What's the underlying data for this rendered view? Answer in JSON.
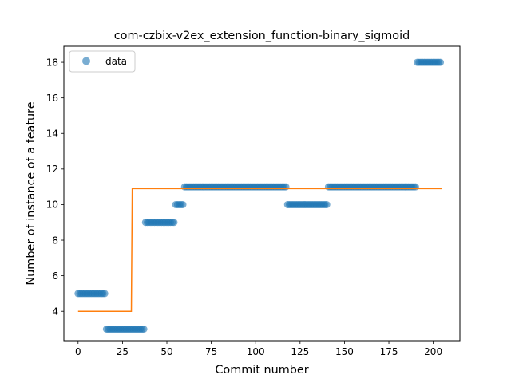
{
  "chart_data": {
    "type": "scatter",
    "title": "com-czbix-v2ex_extension_function-binary_sigmoid",
    "xlabel": "Commit number",
    "ylabel": "Number of instance of a feature",
    "xlim": [
      -8,
      215
    ],
    "ylim": [
      2.35,
      18.9
    ],
    "xticks": [
      0,
      25,
      50,
      75,
      100,
      125,
      150,
      175,
      200
    ],
    "yticks": [
      4,
      6,
      8,
      10,
      12,
      14,
      16,
      18
    ],
    "grid": false,
    "legend_position": "top-left",
    "series": [
      {
        "name": "data",
        "kind": "points",
        "color": "#1f77b4",
        "segments": [
          {
            "x_start": 0,
            "x_end": 16,
            "y": 5
          },
          {
            "x_start": 16,
            "x_end": 38,
            "y": 3
          },
          {
            "x_start": 38,
            "x_end": 55,
            "y": 9
          },
          {
            "x_start": 55,
            "x_end": 60,
            "y": 10
          },
          {
            "x_start": 60,
            "x_end": 118,
            "y": 11
          },
          {
            "x_start": 118,
            "x_end": 141,
            "y": 10
          },
          {
            "x_start": 141,
            "x_end": 191,
            "y": 11
          },
          {
            "x_start": 191,
            "x_end": 205,
            "y": 18
          }
        ]
      },
      {
        "name": "",
        "kind": "line",
        "color": "#ff7f0e",
        "points": [
          [
            0,
            4
          ],
          [
            30,
            4
          ],
          [
            30.5,
            10.9
          ],
          [
            205,
            10.9
          ]
        ]
      }
    ]
  }
}
